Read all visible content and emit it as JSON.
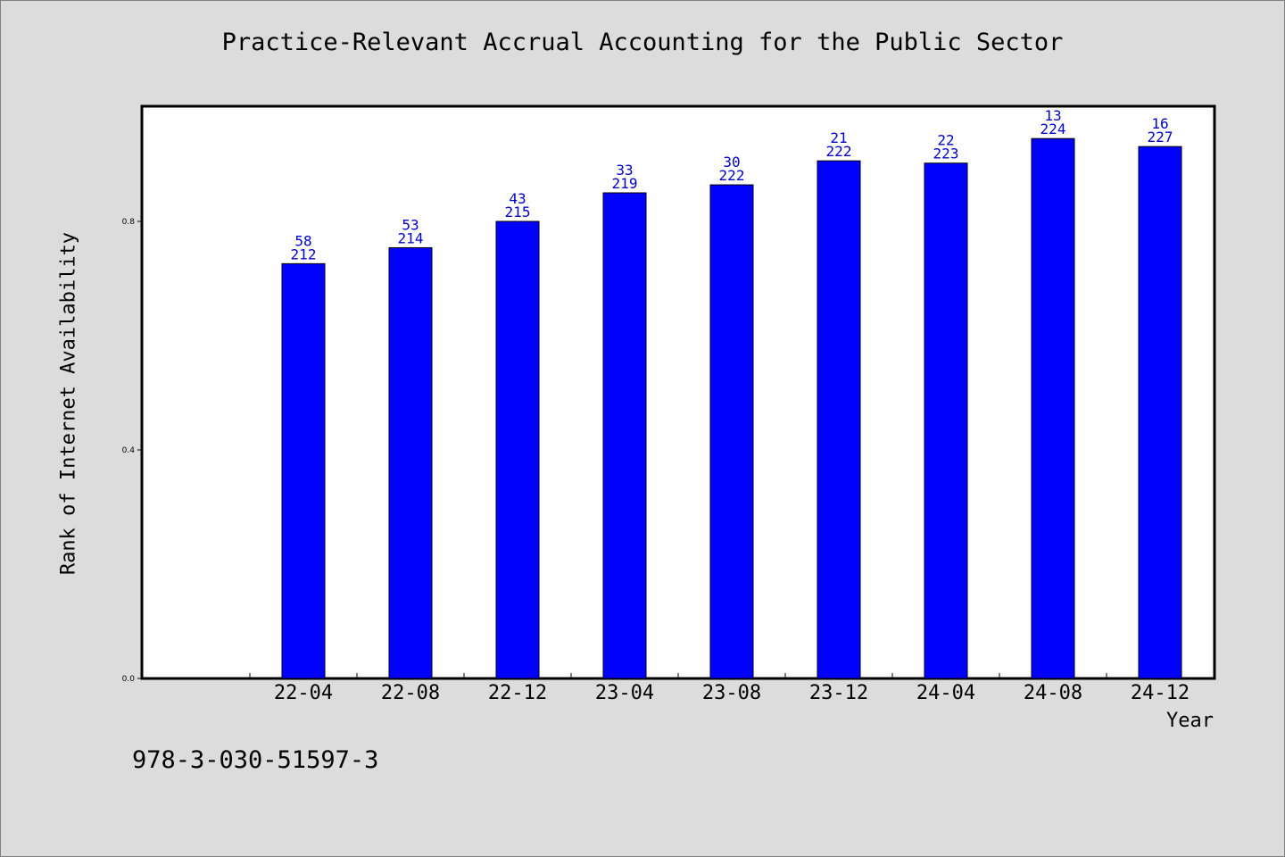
{
  "chart_data": {
    "type": "bar",
    "title": "Practice-Relevant Accrual Accounting for the Public Sector",
    "xlabel": "Year",
    "ylabel": "Rank of Internet Availability",
    "categories": [
      "22-04",
      "22-08",
      "22-12",
      "23-04",
      "23-08",
      "23-12",
      "24-04",
      "24-08",
      "24-12"
    ],
    "values": [
      0.726,
      0.754,
      0.8,
      0.85,
      0.864,
      0.906,
      0.902,
      0.945,
      0.931
    ],
    "labels_top": [
      "58",
      "53",
      "43",
      "33",
      "30",
      "21",
      "22",
      "13",
      "16"
    ],
    "labels_bottom": [
      "212",
      "214",
      "215",
      "219",
      "222",
      "222",
      "223",
      "224",
      "227"
    ],
    "yticks": [
      0.0,
      0.4,
      0.8
    ],
    "ytick_labels": [
      "0.0",
      "0.4",
      "0.8"
    ],
    "ylim": [
      0,
      1.0
    ],
    "bar_color": "#0000ff",
    "label_color": "#0000cc",
    "grid": false,
    "legend": "none"
  },
  "footer": {
    "isbn": "978-3-030-51597-3"
  }
}
